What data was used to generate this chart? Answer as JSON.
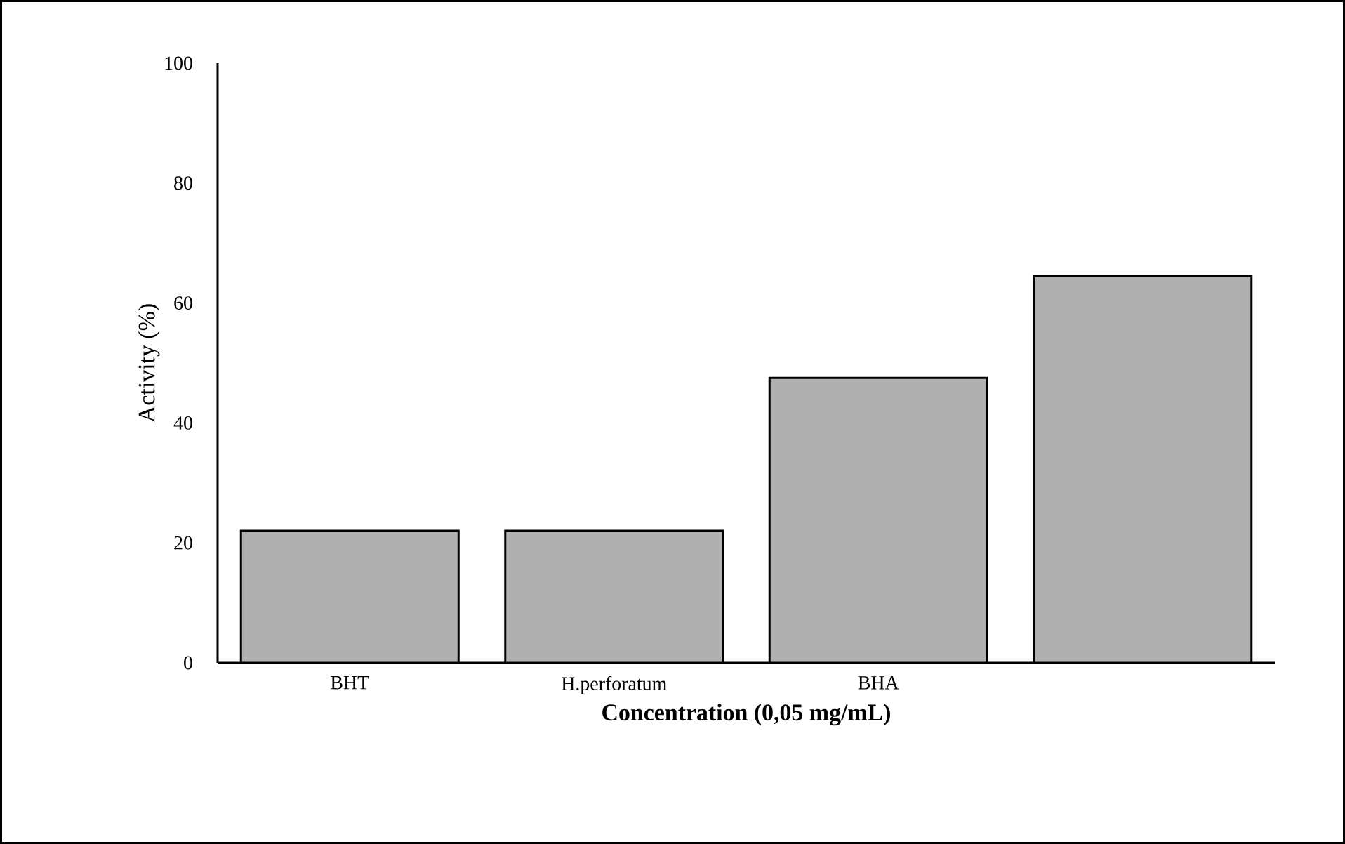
{
  "chart_data": {
    "type": "bar",
    "xlabel": "Concentration (0,05 mg/mL)",
    "ylabel": "Activity (%)",
    "categories": [
      "BHT",
      "H.perforatum",
      "BHA",
      null
    ],
    "values": [
      22,
      22,
      47.5,
      64.5
    ],
    "color": "#b0b0b0",
    "ylim": [
      0,
      100
    ],
    "yticks": [
      0,
      20,
      40,
      60,
      80,
      100
    ],
    "grid": false
  }
}
